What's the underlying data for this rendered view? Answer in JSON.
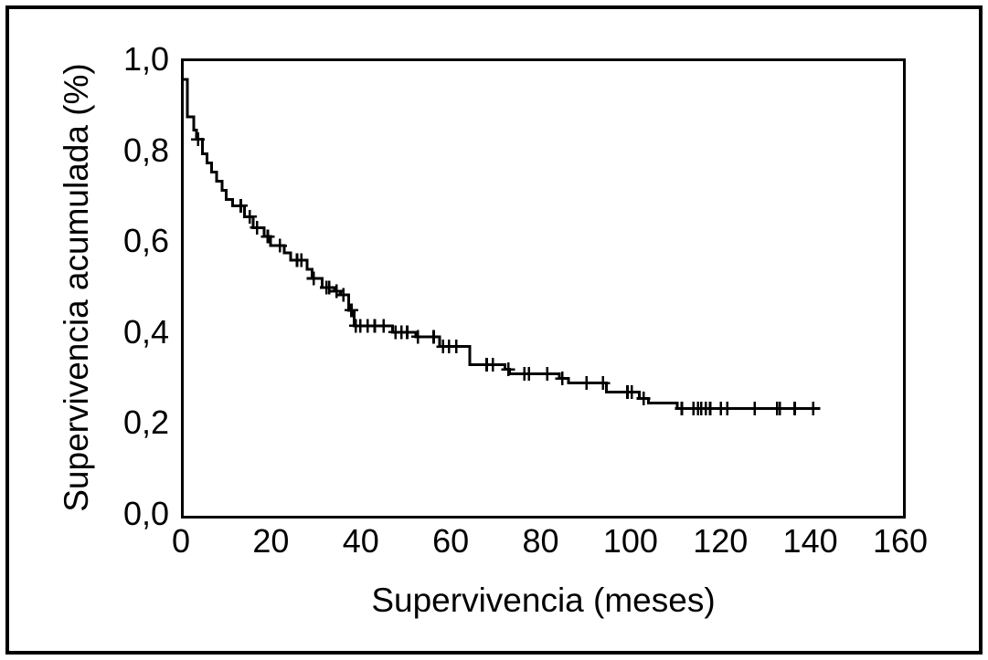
{
  "figure": {
    "background_color": "#ffffff",
    "frame_color": "#000000",
    "line_color": "#000000"
  },
  "chart_data": {
    "type": "line",
    "subtype": "kaplan_meier_step_curve",
    "title": "",
    "xlabel": "Supervivencia (meses)",
    "ylabel": "Supervivencia acumulada (%)",
    "xlim": [
      0,
      160
    ],
    "ylim": [
      0.0,
      1.0
    ],
    "x_ticks": [
      0,
      20,
      40,
      60,
      80,
      100,
      120,
      140,
      160
    ],
    "x_tick_labels": [
      "0",
      "20",
      "40",
      "60",
      "80",
      "100",
      "120",
      "140",
      "160"
    ],
    "y_ticks": [
      0.0,
      0.2,
      0.4,
      0.6,
      0.8,
      1.0
    ],
    "y_tick_labels": [
      "0,0",
      "0,2",
      "0,4",
      "0,6",
      "0,8",
      "1,0"
    ],
    "decimal_separator": ",",
    "grid": false,
    "legend": null,
    "line_color": "#000000",
    "curve_start": [
      0.0,
      0.96
    ],
    "steps": [
      [
        0.8,
        0.878
      ],
      [
        2.2,
        0.848
      ],
      [
        2.8,
        0.828
      ],
      [
        4.2,
        0.796
      ],
      [
        5.2,
        0.776
      ],
      [
        6.2,
        0.756
      ],
      [
        7.3,
        0.736
      ],
      [
        8.5,
        0.716
      ],
      [
        9.5,
        0.696
      ],
      [
        10.9,
        0.682
      ],
      [
        13.5,
        0.658
      ],
      [
        15.5,
        0.634
      ],
      [
        17.9,
        0.614
      ],
      [
        19.3,
        0.594
      ],
      [
        22.4,
        0.578
      ],
      [
        23.8,
        0.562
      ],
      [
        27.4,
        0.542
      ],
      [
        28.6,
        0.522
      ],
      [
        30.8,
        0.502
      ],
      [
        33.5,
        0.494
      ],
      [
        34.9,
        0.486
      ],
      [
        36.7,
        0.452
      ],
      [
        37.9,
        0.418
      ],
      [
        46.5,
        0.404
      ],
      [
        51.6,
        0.394
      ],
      [
        56.9,
        0.372
      ],
      [
        63.6,
        0.332
      ],
      [
        71.5,
        0.322
      ],
      [
        72.5,
        0.312
      ],
      [
        83.6,
        0.302
      ],
      [
        85.6,
        0.292
      ],
      [
        94.0,
        0.272
      ],
      [
        101.3,
        0.258
      ],
      [
        103.4,
        0.248
      ],
      [
        109.8,
        0.236
      ]
    ],
    "end_of_follow_up": [
      141.6,
      0.236
    ],
    "censor_marks": [
      [
        3.2,
        0.828
      ],
      [
        12.7,
        0.682
      ],
      [
        14.7,
        0.658
      ],
      [
        16.3,
        0.634
      ],
      [
        18.7,
        0.614
      ],
      [
        21.4,
        0.594
      ],
      [
        25.2,
        0.562
      ],
      [
        26.2,
        0.562
      ],
      [
        28.9,
        0.522
      ],
      [
        31.8,
        0.502
      ],
      [
        32.4,
        0.502
      ],
      [
        34.0,
        0.494
      ],
      [
        35.5,
        0.486
      ],
      [
        37.3,
        0.452
      ],
      [
        38.3,
        0.418
      ],
      [
        39.3,
        0.418
      ],
      [
        40.9,
        0.418
      ],
      [
        42.5,
        0.418
      ],
      [
        44.5,
        0.418
      ],
      [
        47.1,
        0.404
      ],
      [
        48.4,
        0.404
      ],
      [
        49.7,
        0.404
      ],
      [
        52.1,
        0.394
      ],
      [
        55.6,
        0.394
      ],
      [
        57.7,
        0.372
      ],
      [
        59.0,
        0.372
      ],
      [
        60.6,
        0.372
      ],
      [
        67.4,
        0.332
      ],
      [
        68.8,
        0.332
      ],
      [
        72.2,
        0.322
      ],
      [
        75.8,
        0.312
      ],
      [
        76.8,
        0.312
      ],
      [
        80.9,
        0.312
      ],
      [
        84.2,
        0.302
      ],
      [
        89.6,
        0.292
      ],
      [
        93.3,
        0.292
      ],
      [
        98.7,
        0.272
      ],
      [
        99.7,
        0.272
      ],
      [
        102.3,
        0.258
      ],
      [
        110.8,
        0.236
      ],
      [
        113.4,
        0.236
      ],
      [
        114.4,
        0.236
      ],
      [
        115.1,
        0.236
      ],
      [
        116.1,
        0.236
      ],
      [
        117.1,
        0.236
      ],
      [
        119.5,
        0.236
      ],
      [
        120.9,
        0.236
      ],
      [
        127.0,
        0.236
      ],
      [
        132.0,
        0.236
      ],
      [
        132.6,
        0.236
      ],
      [
        135.9,
        0.236
      ],
      [
        140.0,
        0.236
      ]
    ]
  }
}
